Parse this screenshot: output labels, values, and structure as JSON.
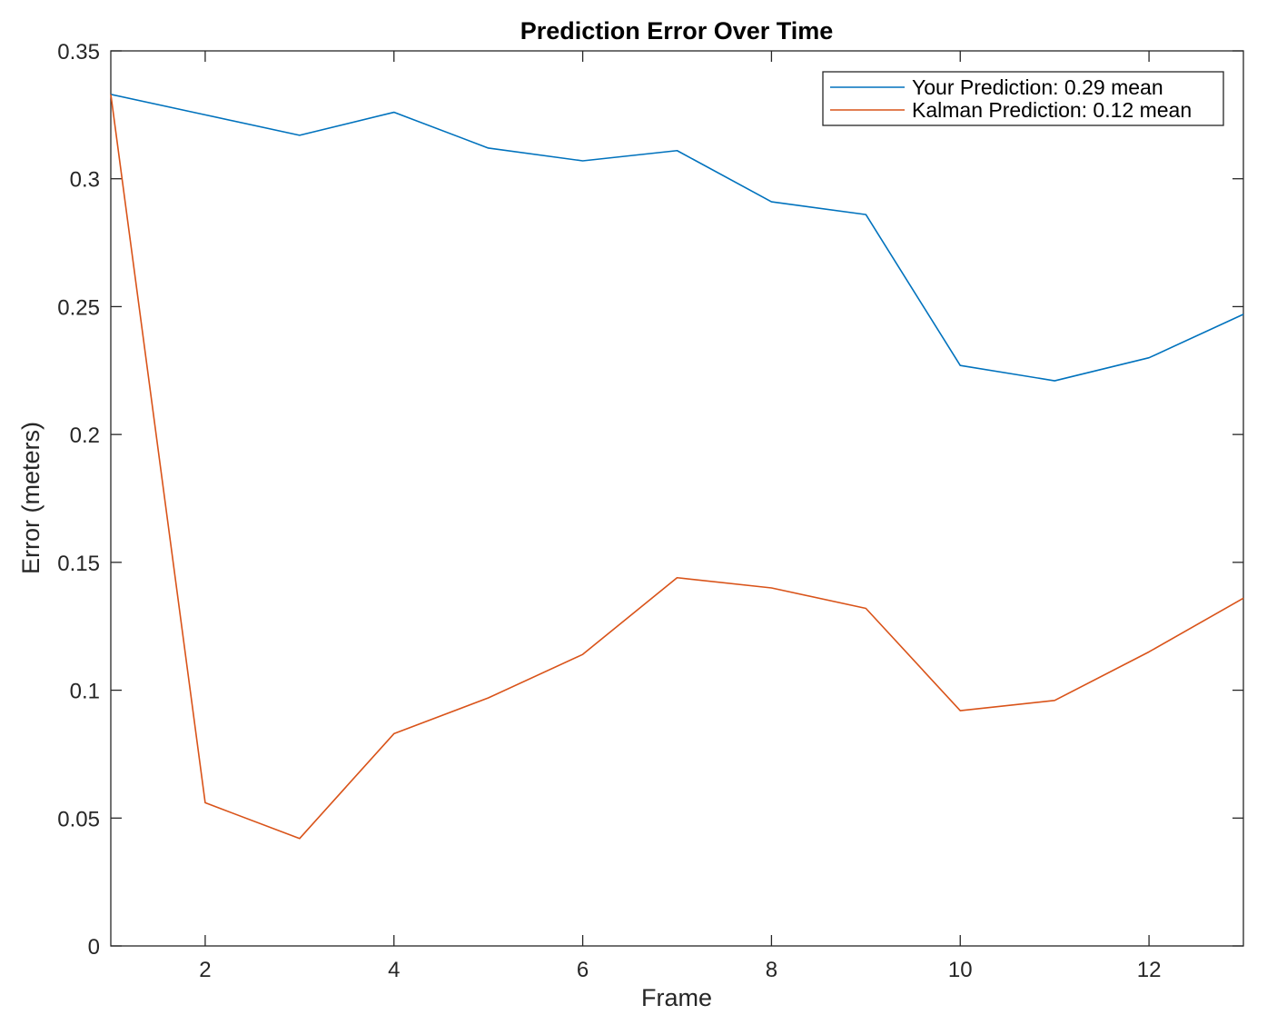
{
  "chart_data": {
    "type": "line",
    "title": "Prediction Error Over Time",
    "xlabel": "Frame",
    "ylabel": "Error (meters)",
    "xlim": [
      1,
      13
    ],
    "ylim": [
      0,
      0.35
    ],
    "x_ticks": [
      2,
      4,
      6,
      8,
      10,
      12
    ],
    "y_ticks": [
      0,
      0.05,
      0.1,
      0.15,
      0.2,
      0.25,
      0.3,
      0.35
    ],
    "y_tick_labels": [
      "0",
      "0.05",
      "0.1",
      "0.15",
      "0.2",
      "0.25",
      "0.3",
      "0.35"
    ],
    "x_tick_labels": [
      "2",
      "4",
      "6",
      "8",
      "10",
      "12"
    ],
    "grid": false,
    "legend_position": "top-right",
    "x": [
      1,
      2,
      3,
      4,
      5,
      6,
      7,
      8,
      9,
      10,
      11,
      12,
      13
    ],
    "series": [
      {
        "name": "Your Prediction: 0.29 mean",
        "color": "#0072BD",
        "values": [
          0.333,
          0.325,
          0.317,
          0.326,
          0.312,
          0.307,
          0.311,
          0.291,
          0.286,
          0.227,
          0.221,
          0.23,
          0.247
        ]
      },
      {
        "name": "Kalman Prediction: 0.12 mean",
        "color": "#D95319",
        "values": [
          0.333,
          0.056,
          0.042,
          0.083,
          0.097,
          0.114,
          0.144,
          0.14,
          0.132,
          0.092,
          0.096,
          0.115,
          0.136
        ]
      }
    ]
  }
}
